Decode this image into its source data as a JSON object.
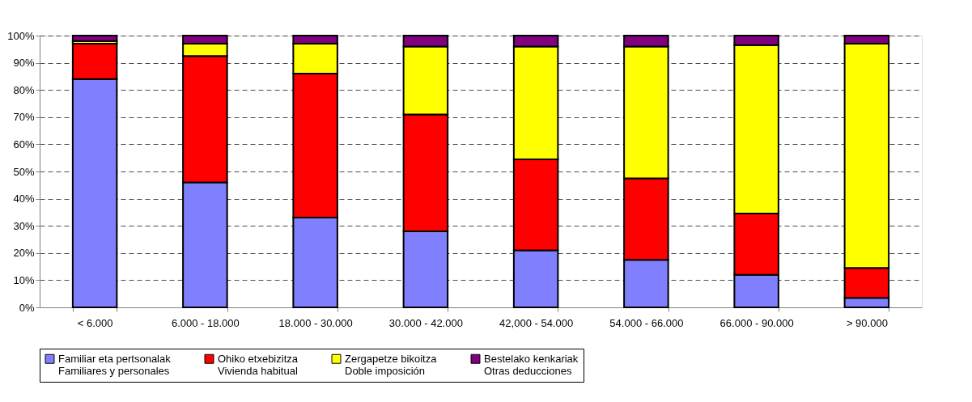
{
  "chart_data": {
    "type": "bar",
    "stacked": true,
    "categories": [
      "< 6.000",
      "6.000 - 18.000",
      "18.000 - 30.000",
      "30.000 - 42.000",
      "42,000 - 54.000",
      "54.000 - 66.000",
      "66.000 - 90.000",
      "> 90.000"
    ],
    "series": [
      {
        "name": "Familiar eta pertsonalak\nFamiliares y personales",
        "color": "#8080ff",
        "values": [
          84,
          46,
          33,
          28,
          21,
          17.5,
          12,
          3.5
        ]
      },
      {
        "name": "Ohiko etxebizitza\nVivienda habitual",
        "color": "#ff0000",
        "values": [
          13,
          46.5,
          53,
          43,
          33.5,
          30,
          22.5,
          11
        ]
      },
      {
        "name": "Zergapetze bikoitza\nDoble imposición",
        "color": "#ffff00",
        "values": [
          1,
          4.5,
          11,
          25,
          41.5,
          48.5,
          62,
          82.5
        ]
      },
      {
        "name": "Bestelako kenkariak\nOtras deducciones",
        "color": "#800080",
        "values": [
          2,
          3,
          3,
          4,
          4,
          4,
          3.5,
          3
        ]
      }
    ],
    "ylim": [
      0,
      100
    ],
    "yticks": [
      {
        "value": 0,
        "label": "0%"
      },
      {
        "value": 10,
        "label": "10%"
      },
      {
        "value": 20,
        "label": "20%"
      },
      {
        "value": 30,
        "label": "30%"
      },
      {
        "value": 40,
        "label": "40%"
      },
      {
        "value": 50,
        "label": "50%"
      },
      {
        "value": 60,
        "label": "60%"
      },
      {
        "value": 70,
        "label": "70%"
      },
      {
        "value": 80,
        "label": "80%"
      },
      {
        "value": 90,
        "label": "90%"
      },
      {
        "value": 100,
        "label": "100%"
      }
    ],
    "grid": "y",
    "line_style": "dashed",
    "legend": "bottom"
  }
}
